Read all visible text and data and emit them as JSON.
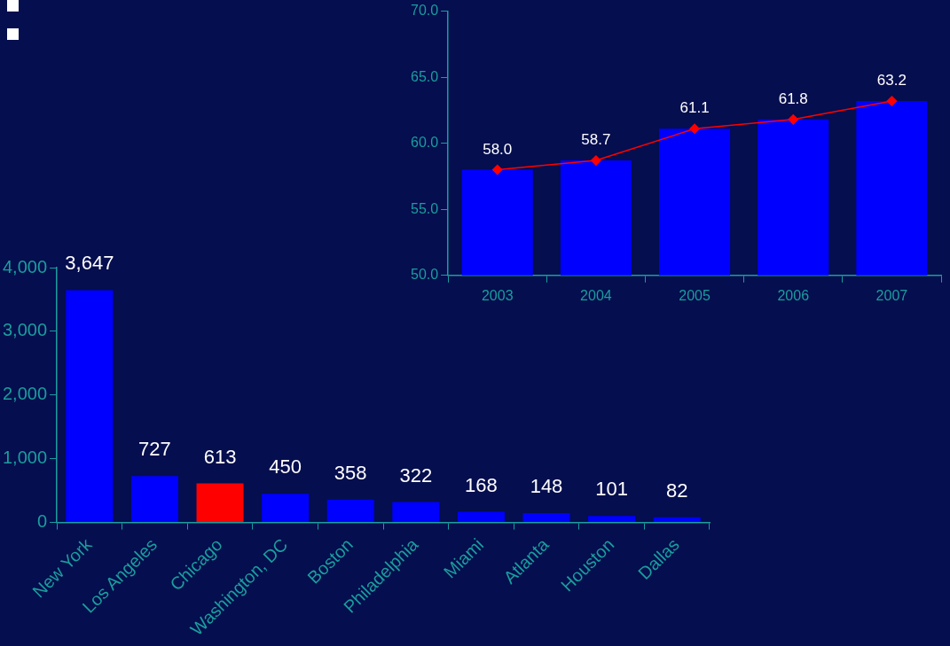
{
  "chart_data": [
    {
      "type": "bar",
      "categories": [
        "2003",
        "2004",
        "2005",
        "2006",
        "2007"
      ],
      "series": [
        {
          "color": "#0000ff",
          "values": [
            58.0,
            58.7,
            61.1,
            61.8,
            63.2
          ]
        },
        {
          "type": "line",
          "color": "#ff0000",
          "values": [
            58.0,
            58.7,
            61.1,
            61.8,
            63.2
          ],
          "value_labels": [
            "58.0",
            "58.7",
            "61.1",
            "61.8",
            "63.2"
          ]
        }
      ],
      "ylim": [
        50,
        70
      ],
      "yticks": [
        {
          "value": 50,
          "label": "50.0"
        },
        {
          "value": 55,
          "label": "55.0"
        },
        {
          "value": 60,
          "label": "60.0"
        },
        {
          "value": 65,
          "label": "65.0"
        },
        {
          "value": 70,
          "label": "70.0"
        }
      ],
      "marker": "diamond"
    },
    {
      "type": "bar",
      "categories": [
        "New York",
        "Los Angeles",
        "Chicago",
        "Washington, DC",
        "Boston",
        "Philadelphia",
        "Miami",
        "Atlanta",
        "Houston",
        "Dallas"
      ],
      "values": [
        3647,
        727,
        613,
        450,
        358,
        322,
        168,
        148,
        101,
        82
      ],
      "value_labels": [
        "3,647",
        "727",
        "613",
        "450",
        "358",
        "322",
        "168",
        "148",
        "101",
        "82"
      ],
      "colors": [
        "#0000ff",
        "#0000ff",
        "#ff0000",
        "#0000ff",
        "#0000ff",
        "#0000ff",
        "#0000ff",
        "#0000ff",
        "#0000ff",
        "#0000ff"
      ],
      "ylim": [
        0,
        4000
      ],
      "yticks": [
        0,
        {
          "value": 1000,
          "label": "1,000"
        },
        {
          "value": 2000,
          "label": "2,000"
        },
        {
          "value": 3000,
          "label": "3,000"
        },
        {
          "value": 4000,
          "label": "4,000"
        }
      ]
    }
  ]
}
